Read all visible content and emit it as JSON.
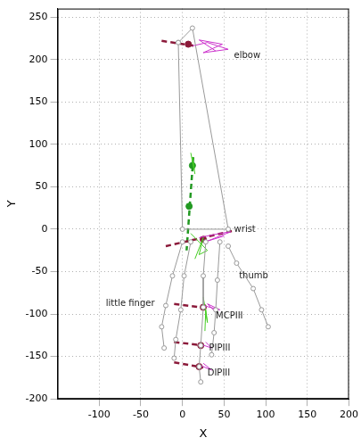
{
  "chart_data": {
    "type": "line",
    "x_label": "X",
    "y_label": "Y",
    "xlim": [
      -150,
      200
    ],
    "ylim": [
      -200,
      260
    ],
    "xticks": [
      -100,
      -50,
      0,
      50,
      100,
      150,
      200
    ],
    "yticks": [
      -200,
      -150,
      -100,
      -50,
      0,
      50,
      100,
      150,
      200,
      250
    ],
    "grid": true,
    "series": [
      {
        "color": "#999999",
        "line_style": "solid",
        "marker": "open_circle",
        "x": [
          -5,
          12,
          55,
          0,
          -5
        ],
        "values": [
          220,
          237,
          0,
          0,
          220
        ]
      },
      {
        "color": "#999999",
        "line_style": "solid",
        "marker": "open_circle",
        "x": [
          0,
          -12,
          -20,
          -25,
          -22
        ],
        "values": [
          -15,
          -55,
          -90,
          -115,
          -140
        ]
      },
      {
        "color": "#999999",
        "line_style": "solid",
        "marker": "open_circle",
        "x": [
          10,
          2,
          -2,
          -8,
          -10
        ],
        "values": [
          -15,
          -55,
          -95,
          -130,
          -152
        ]
      },
      {
        "color": "#999999",
        "line_style": "solid",
        "marker": "open_circle",
        "x": [
          28,
          25,
          25,
          22,
          20,
          22
        ],
        "values": [
          -15,
          -55,
          -92,
          -137,
          -162,
          -180
        ]
      },
      {
        "color": "#999999",
        "line_style": "solid",
        "marker": "open_circle",
        "x": [
          45,
          42,
          40,
          38,
          35
        ],
        "values": [
          -15,
          -60,
          -95,
          -122,
          -148
        ]
      },
      {
        "color": "#999999",
        "line_style": "solid",
        "marker": "open_circle",
        "x": [
          55,
          65,
          85,
          95,
          103
        ],
        "values": [
          -20,
          -40,
          -70,
          -95,
          -115
        ]
      },
      {
        "color": "#cc33cc",
        "line_style": "solid",
        "marker": "none",
        "x": [
          12,
          30,
          55,
          25,
          48,
          20,
          40
        ],
        "values": [
          216,
          220,
          212,
          208,
          218,
          223,
          210
        ]
      },
      {
        "color": "#cc33cc",
        "line_style": "solid",
        "marker": "none",
        "x": [
          20,
          45,
          58,
          30,
          50
        ],
        "values": [
          -10,
          -5,
          -3,
          -14,
          -8
        ]
      },
      {
        "color": "#cc33cc",
        "line_style": "solid",
        "marker": "none",
        "x": [
          25,
          45,
          30,
          40
        ],
        "values": [
          -90,
          -95,
          -88,
          -98
        ]
      },
      {
        "color": "#cc33cc",
        "line_style": "solid",
        "marker": "none",
        "x": [
          20,
          35,
          28
        ],
        "values": [
          -135,
          -140,
          -133
        ]
      },
      {
        "color": "#cc33cc",
        "line_style": "solid",
        "marker": "none",
        "x": [
          20,
          35,
          25
        ],
        "values": [
          -160,
          -166,
          -158
        ]
      },
      {
        "color": "#44cc22",
        "line_style": "solid",
        "marker": "none",
        "x": [
          10,
          30,
          20,
          25,
          15
        ],
        "values": [
          -5,
          -25,
          -30,
          -10,
          -35
        ]
      },
      {
        "color": "#44cc22",
        "line_style": "solid",
        "marker": "none",
        "x": [
          25,
          30,
          28,
          27
        ],
        "values": [
          -80,
          -110,
          -95,
          -120
        ]
      },
      {
        "color": "#44cc22",
        "line_style": "solid",
        "marker": "none",
        "x": [
          10,
          14,
          12,
          15
        ],
        "values": [
          90,
          70,
          85,
          65
        ]
      },
      {
        "color": "#8b1a3a",
        "line_style": "dashed",
        "marker": "none",
        "x": [
          -25,
          15
        ],
        "values": [
          222,
          216
        ]
      },
      {
        "color": "#8b1a3a",
        "line_style": "dashed",
        "marker": "none",
        "x": [
          -20,
          60
        ],
        "values": [
          -20,
          -2
        ]
      },
      {
        "color": "#8b1a3a",
        "line_style": "dashed",
        "marker": "none",
        "x": [
          -10,
          30
        ],
        "values": [
          -88,
          -93
        ]
      },
      {
        "color": "#8b1a3a",
        "line_style": "dashed",
        "marker": "none",
        "x": [
          -10,
          25
        ],
        "values": [
          -133,
          -137
        ]
      },
      {
        "color": "#8b1a3a",
        "line_style": "dashed",
        "marker": "none",
        "x": [
          -10,
          25
        ],
        "values": [
          -157,
          -163
        ]
      },
      {
        "color": "#229922",
        "line_style": "dashed",
        "marker": "none",
        "x": [
          13,
          5
        ],
        "values": [
          85,
          -25
        ]
      },
      {
        "color": "#229922",
        "line_style": "none",
        "marker": "circle",
        "x": [
          12,
          8
        ],
        "values": [
          75,
          27
        ]
      },
      {
        "color": "#8b1a3a",
        "line_style": "none",
        "marker": "circle",
        "x": [
          7,
          25,
          25,
          22,
          20
        ],
        "values": [
          218,
          -12,
          -92,
          -137,
          -162
        ]
      }
    ],
    "annotations": [
      {
        "text": "elbow",
        "x": 62,
        "y": 205
      },
      {
        "text": "wrist",
        "x": 62,
        "y": 0
      },
      {
        "text": "thumb",
        "x": 68,
        "y": -55
      },
      {
        "text": "little finger",
        "x": -92,
        "y": -88
      },
      {
        "text": "MCPIII",
        "x": 40,
        "y": -102
      },
      {
        "text": "PIPIII",
        "x": 32,
        "y": -140
      },
      {
        "text": "DIPIII",
        "x": 30,
        "y": -170
      }
    ]
  }
}
